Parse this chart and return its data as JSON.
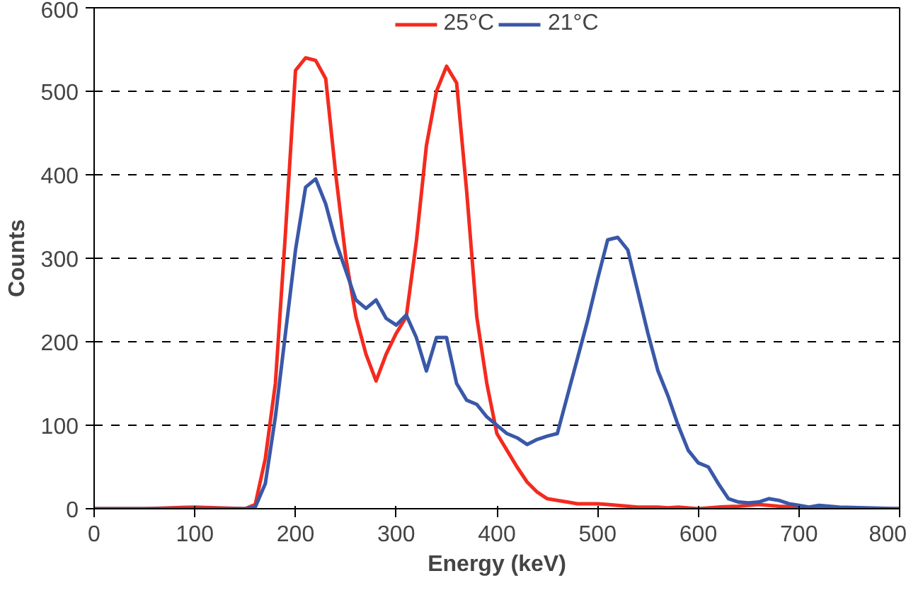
{
  "chart_data": {
    "type": "line",
    "xlabel": "Energy (keV)",
    "ylabel": "Counts",
    "xlim": [
      0,
      800
    ],
    "xticks": [
      0,
      100,
      200,
      300,
      400,
      500,
      600,
      700,
      800
    ],
    "ylim": [
      0,
      600
    ],
    "yticks": [
      0,
      100,
      200,
      300,
      400,
      500,
      600
    ],
    "grid": "y",
    "legend": "top",
    "marker": "none",
    "line_style": "solid",
    "series": [
      {
        "name": "25°C",
        "color": "#f42a1e",
        "x": [
          0,
          50,
          100,
          150,
          160,
          170,
          180,
          190,
          200,
          210,
          220,
          230,
          240,
          250,
          260,
          270,
          280,
          290,
          300,
          310,
          320,
          330,
          340,
          350,
          360,
          370,
          380,
          390,
          400,
          410,
          420,
          430,
          440,
          450,
          460,
          470,
          480,
          490,
          500,
          510,
          520,
          530,
          540,
          550,
          560,
          570,
          580,
          600,
          620,
          640,
          660,
          680,
          700,
          720,
          740,
          800
        ],
        "values": [
          0,
          0,
          2,
          0,
          5,
          60,
          150,
          330,
          525,
          540,
          537,
          515,
          400,
          300,
          230,
          185,
          153,
          185,
          210,
          230,
          320,
          435,
          500,
          530,
          510,
          380,
          230,
          150,
          90,
          70,
          50,
          32,
          20,
          12,
          10,
          8,
          6,
          6,
          6,
          5,
          4,
          3,
          2,
          2,
          2,
          1,
          2,
          0,
          2,
          3,
          5,
          3,
          2,
          1,
          0,
          0
        ]
      },
      {
        "name": "21°C",
        "color": "#3a58a8",
        "x": [
          0,
          50,
          100,
          150,
          160,
          170,
          180,
          190,
          200,
          210,
          220,
          230,
          240,
          250,
          260,
          270,
          280,
          290,
          300,
          310,
          320,
          330,
          340,
          350,
          360,
          370,
          380,
          390,
          400,
          410,
          420,
          430,
          440,
          450,
          460,
          470,
          480,
          490,
          500,
          510,
          520,
          530,
          540,
          550,
          560,
          570,
          580,
          590,
          600,
          610,
          620,
          630,
          640,
          650,
          660,
          670,
          680,
          690,
          700,
          710,
          720,
          730,
          740,
          800
        ],
        "values": [
          0,
          0,
          0,
          0,
          2,
          30,
          110,
          210,
          310,
          385,
          395,
          365,
          320,
          285,
          250,
          240,
          250,
          228,
          220,
          232,
          205,
          165,
          205,
          205,
          150,
          130,
          125,
          110,
          100,
          90,
          85,
          77,
          83,
          87,
          90,
          135,
          180,
          225,
          275,
          322,
          325,
          310,
          260,
          210,
          165,
          135,
          100,
          70,
          55,
          50,
          30,
          12,
          8,
          7,
          8,
          12,
          10,
          6,
          4,
          2,
          4,
          3,
          2,
          0
        ]
      }
    ]
  }
}
